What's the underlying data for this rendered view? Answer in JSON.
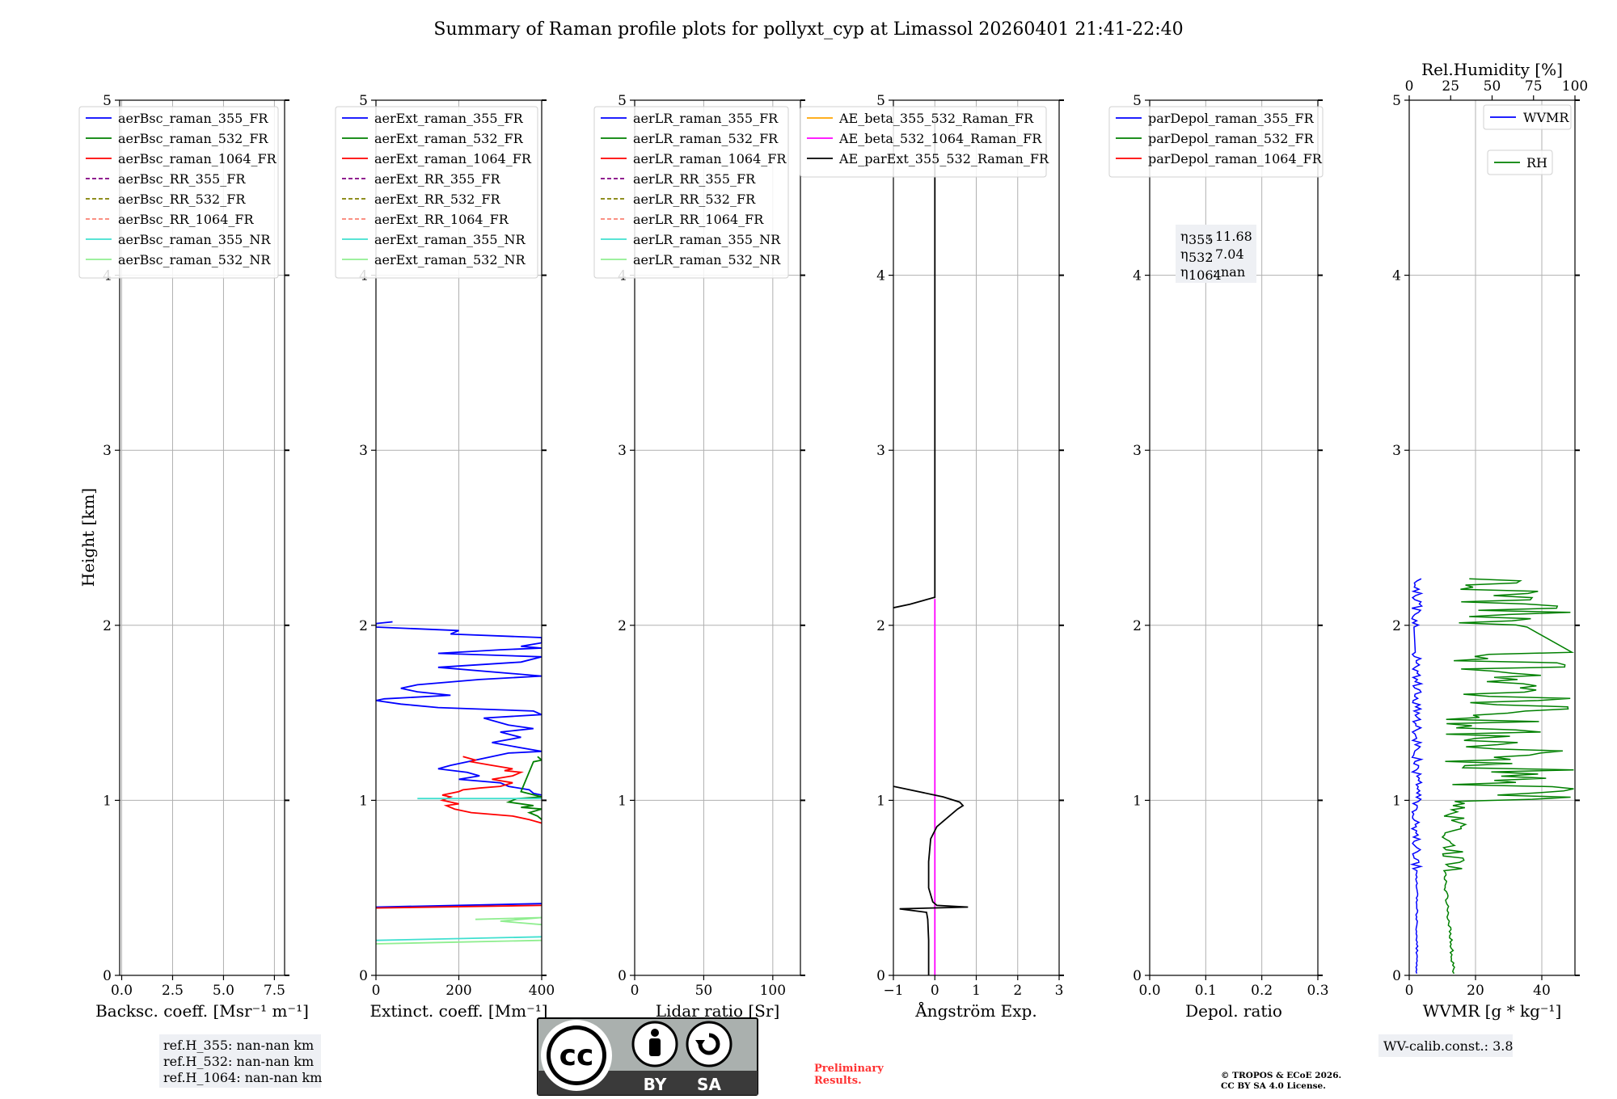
{
  "chart_data": {
    "type": "line",
    "title": "Summary of Raman profile plots for pollyxt_cyp at Limassol 20260401 21:41-22:40",
    "ylabel": "Height [km]",
    "ylim": [
      0,
      5
    ],
    "yticks": [
      "0",
      "1",
      "2",
      "3",
      "4",
      "5"
    ],
    "panels": [
      {
        "id": "bsc",
        "xlabel": "Backsc. coeff. [Msr⁻¹ m⁻¹]",
        "xlim": [
          -0.1,
          8.0
        ],
        "xticks": [
          {
            "v": 0,
            "label": "0.0"
          },
          {
            "v": 2.5,
            "label": "2.5"
          },
          {
            "v": 5,
            "label": "5.0"
          },
          {
            "v": 7.5,
            "label": "7.5"
          }
        ],
        "legend": [
          {
            "label": "aerBsc_raman_355_FR",
            "color": "#0000ff",
            "dash": false
          },
          {
            "label": "aerBsc_raman_532_FR",
            "color": "#008000",
            "dash": false
          },
          {
            "label": "aerBsc_raman_1064_FR",
            "color": "#ff0000",
            "dash": false
          },
          {
            "label": "aerBsc_RR_355_FR",
            "color": "#800080",
            "dash": true
          },
          {
            "label": "aerBsc_RR_532_FR",
            "color": "#808000",
            "dash": true
          },
          {
            "label": "aerBsc_RR_1064_FR",
            "color": "#fa8072",
            "dash": true
          },
          {
            "label": "aerBsc_raman_355_NR",
            "color": "#40e0d0",
            "dash": false
          },
          {
            "label": "aerBsc_raman_532_NR",
            "color": "#90ee90",
            "dash": false
          }
        ],
        "series": [],
        "annotation": [
          "ref.H_355: nan-nan km",
          "ref.H_532: nan-nan km",
          "ref.H_1064: nan-nan km"
        ]
      },
      {
        "id": "ext",
        "xlabel": "Extinct. coeff. [Mm⁻¹]",
        "xlim": [
          0,
          400
        ],
        "xticks": [
          {
            "v": 0,
            "label": "0"
          },
          {
            "v": 200,
            "label": "200"
          },
          {
            "v": 400,
            "label": "400"
          }
        ],
        "legend": [
          {
            "label": "aerExt_raman_355_FR",
            "color": "#0000ff",
            "dash": false
          },
          {
            "label": "aerExt_raman_532_FR",
            "color": "#008000",
            "dash": false
          },
          {
            "label": "aerExt_raman_1064_FR",
            "color": "#ff0000",
            "dash": false
          },
          {
            "label": "aerExt_RR_355_FR",
            "color": "#800080",
            "dash": true
          },
          {
            "label": "aerExt_RR_532_FR",
            "color": "#808000",
            "dash": true
          },
          {
            "label": "aerExt_RR_1064_FR",
            "color": "#fa8072",
            "dash": true
          },
          {
            "label": "aerExt_raman_355_NR",
            "color": "#40e0d0",
            "dash": false
          },
          {
            "label": "aerExt_raman_532_NR",
            "color": "#90ee90",
            "dash": false
          }
        ],
        "series": [
          {
            "name": "aerExt_raman_355_FR",
            "color": "#0000ff",
            "points": [
              [
                40,
                2.02
              ],
              [
                0,
                2.01
              ],
              [
                0,
                1.99
              ],
              [
                200,
                1.97
              ],
              [
                180,
                1.95
              ],
              [
                400,
                1.93
              ],
              [
                400,
                1.9
              ],
              [
                350,
                1.88
              ],
              [
                400,
                1.87
              ],
              [
                300,
                1.86
              ],
              [
                150,
                1.84
              ],
              [
                400,
                1.82
              ],
              [
                350,
                1.79
              ],
              [
                150,
                1.76
              ],
              [
                400,
                1.71
              ],
              [
                250,
                1.69
              ],
              [
                100,
                1.66
              ],
              [
                60,
                1.64
              ],
              [
                100,
                1.62
              ],
              [
                180,
                1.6
              ],
              [
                20,
                1.58
              ],
              [
                0,
                1.57
              ],
              [
                60,
                1.55
              ],
              [
                150,
                1.53
              ],
              [
                380,
                1.51
              ],
              [
                400,
                1.49
              ],
              [
                260,
                1.47
              ],
              [
                320,
                1.43
              ],
              [
                380,
                1.41
              ],
              [
                300,
                1.39
              ],
              [
                350,
                1.36
              ],
              [
                280,
                1.33
              ],
              [
                350,
                1.3
              ],
              [
                400,
                1.28
              ],
              [
                320,
                1.27
              ],
              [
                280,
                1.25
              ],
              [
                240,
                1.23
              ],
              [
                180,
                1.2
              ],
              [
                150,
                1.18
              ],
              [
                220,
                1.16
              ],
              [
                250,
                1.14
              ],
              [
                200,
                1.12
              ],
              [
                300,
                1.1
              ],
              [
                320,
                1.08
              ],
              [
                370,
                1.06
              ],
              [
                380,
                1.04
              ],
              [
                400,
                1.03
              ]
            ]
          },
          {
            "name": "aerExt_raman_532_FR",
            "color": "#008000",
            "points": [
              [
                390,
                1.25
              ],
              [
                400,
                1.23
              ],
              [
                380,
                1.22
              ],
              [
                350,
                1.05
              ],
              [
                400,
                1.02
              ],
              [
                340,
                1.01
              ],
              [
                320,
                0.99
              ],
              [
                380,
                0.97
              ],
              [
                350,
                0.96
              ],
              [
                400,
                0.95
              ],
              [
                370,
                0.93
              ],
              [
                390,
                0.91
              ],
              [
                400,
                0.89
              ]
            ]
          },
          {
            "name": "aerExt_raman_1064_FR",
            "color": "#ff0000",
            "points": [
              [
                210,
                1.25
              ],
              [
                240,
                1.23
              ],
              [
                230,
                1.22
              ],
              [
                280,
                1.2
              ],
              [
                330,
                1.18
              ],
              [
                310,
                1.17
              ],
              [
                350,
                1.16
              ],
              [
                330,
                1.14
              ],
              [
                280,
                1.12
              ],
              [
                330,
                1.1
              ],
              [
                300,
                1.08
              ],
              [
                250,
                1.07
              ],
              [
                210,
                1.06
              ],
              [
                200,
                1.05
              ],
              [
                180,
                1.04
              ],
              [
                160,
                1.03
              ],
              [
                180,
                1.02
              ],
              [
                160,
                1.0
              ],
              [
                200,
                0.98
              ],
              [
                170,
                0.97
              ],
              [
                190,
                0.95
              ],
              [
                230,
                0.93
              ],
              [
                330,
                0.91
              ],
              [
                370,
                0.89
              ],
              [
                400,
                0.87
              ]
            ]
          },
          {
            "name": "aerExt_raman_355_NR",
            "color": "#40e0d0",
            "points": [
              [
                100,
                1.01
              ],
              [
                300,
                1.01
              ],
              [
                400,
                1.01
              ]
            ]
          },
          {
            "name": "aerExt_raman_532_NR",
            "color": "#90ee90",
            "points": [
              [
                0,
                0.18
              ],
              [
                200,
                0.19
              ],
              [
                400,
                0.2
              ]
            ]
          },
          {
            "name": "aerExt_raman_532_NR_low",
            "color": "#90ee90",
            "points": [
              [
                240,
                0.32
              ],
              [
                400,
                0.33
              ],
              [
                300,
                0.31
              ],
              [
                400,
                0.29
              ]
            ]
          },
          {
            "name": "aerExt_raman_355_NR_low",
            "color": "#40e0d0",
            "points": [
              [
                0,
                0.2
              ],
              [
                200,
                0.21
              ],
              [
                400,
                0.22
              ]
            ]
          },
          {
            "name": "aerExt_raman_355_FR_base",
            "color": "#0000ff",
            "points": [
              [
                0,
                0.39
              ],
              [
                400,
                0.41
              ]
            ]
          },
          {
            "name": "aerExt_raman_1064_FR_base",
            "color": "#ff0000",
            "points": [
              [
                0,
                0.385
              ],
              [
                400,
                0.4
              ]
            ]
          }
        ]
      },
      {
        "id": "lr",
        "xlabel": "Lidar ratio [Sr]",
        "xlim": [
          0,
          120
        ],
        "xticks": [
          {
            "v": 0,
            "label": "0"
          },
          {
            "v": 50,
            "label": "50"
          },
          {
            "v": 100,
            "label": "100"
          }
        ],
        "legend": [
          {
            "label": "aerLR_raman_355_FR",
            "color": "#0000ff",
            "dash": false
          },
          {
            "label": "aerLR_raman_532_FR",
            "color": "#008000",
            "dash": false
          },
          {
            "label": "aerLR_raman_1064_FR",
            "color": "#ff0000",
            "dash": false
          },
          {
            "label": "aerLR_RR_355_FR",
            "color": "#800080",
            "dash": true
          },
          {
            "label": "aerLR_RR_532_FR",
            "color": "#808000",
            "dash": true
          },
          {
            "label": "aerLR_RR_1064_FR",
            "color": "#fa8072",
            "dash": true
          },
          {
            "label": "aerLR_raman_355_NR",
            "color": "#40e0d0",
            "dash": false
          },
          {
            "label": "aerLR_raman_532_NR",
            "color": "#90ee90",
            "dash": false
          }
        ],
        "series": []
      },
      {
        "id": "ae",
        "xlabel": "Ångström Exp.",
        "xlim": [
          -1,
          3
        ],
        "xticks": [
          {
            "v": -1,
            "label": "−1"
          },
          {
            "v": 0,
            "label": "0"
          },
          {
            "v": 1,
            "label": "1"
          },
          {
            "v": 2,
            "label": "2"
          },
          {
            "v": 3,
            "label": "3"
          }
        ],
        "legend": [
          {
            "label": "AE_beta_355_532_Raman_FR",
            "color": "#ffa500",
            "dash": false
          },
          {
            "label": "AE_beta_532_1064_Raman_FR",
            "color": "#ff00ff",
            "dash": false
          },
          {
            "label": "AE_parExt_355_532_Raman_FR",
            "color": "#000000",
            "dash": false
          }
        ],
        "series": [
          {
            "name": "AE_beta_532_1064_Raman_FR",
            "color": "#ff00ff",
            "points": [
              [
                0,
                0
              ],
              [
                0,
                2.15
              ]
            ]
          },
          {
            "name": "AE_parExt_355_532_Raman_FR",
            "color": "#000000",
            "points": [
              [
                -0.15,
                0
              ],
              [
                -0.15,
                0.2
              ],
              [
                -0.17,
                0.32
              ],
              [
                -0.2,
                0.36
              ],
              [
                -0.85,
                0.38
              ],
              [
                0.8,
                0.39
              ],
              [
                0.05,
                0.4
              ],
              [
                -0.05,
                0.42
              ],
              [
                -0.15,
                0.5
              ],
              [
                -0.15,
                0.65
              ],
              [
                -0.1,
                0.78
              ],
              [
                0.05,
                0.85
              ],
              [
                0.55,
                0.95
              ],
              [
                0.68,
                0.97
              ],
              [
                0.6,
                0.99
              ],
              [
                0.2,
                1.02
              ],
              [
                -1,
                1.08
              ]
            ]
          },
          {
            "name": "AE_parExt_upper",
            "color": "#000000",
            "points": [
              [
                -1,
                2.1
              ],
              [
                -0.6,
                2.12
              ],
              [
                0,
                2.16
              ],
              [
                0,
                4.9
              ]
            ]
          }
        ]
      },
      {
        "id": "dep",
        "xlabel": "Depol. ratio",
        "xlim": [
          0,
          0.3
        ],
        "xticks": [
          {
            "v": 0,
            "label": "0.0"
          },
          {
            "v": 0.1,
            "label": "0.1"
          },
          {
            "v": 0.2,
            "label": "0.2"
          },
          {
            "v": 0.3,
            "label": "0.3"
          }
        ],
        "legend": [
          {
            "label": "parDepol_raman_355_FR",
            "color": "#0000ff",
            "dash": false
          },
          {
            "label": "parDepol_raman_532_FR",
            "color": "#008000",
            "dash": false
          },
          {
            "label": "parDepol_raman_1064_FR",
            "color": "#ff0000",
            "dash": false
          }
        ],
        "series": [],
        "eta": [
          {
            "sub": "355",
            "value": "11.68"
          },
          {
            "sub": "532",
            "value": "7.04"
          },
          {
            "sub": "1064",
            "value": "nan"
          }
        ]
      },
      {
        "id": "wv",
        "xlabel": "WVMR [g * kg⁻¹]",
        "xlim": [
          0,
          50
        ],
        "xticks": [
          {
            "v": 0,
            "label": "0"
          },
          {
            "v": 20,
            "label": "20"
          },
          {
            "v": 40,
            "label": "40"
          }
        ],
        "top_label": "Rel.Humidity [%]",
        "top_xlim": [
          0,
          100
        ],
        "top_ticks": [
          {
            "v": 0,
            "label": "0"
          },
          {
            "v": 25,
            "label": "25"
          },
          {
            "v": 50,
            "label": "50"
          },
          {
            "v": 75,
            "label": "75"
          },
          {
            "v": 100,
            "label": "100"
          }
        ],
        "legend_wvmr": {
          "label": "WVMR",
          "color": "#0000ff"
        },
        "legend_rh": {
          "label": "RH",
          "color": "#008000"
        },
        "annotation": "WV-calib.const.: 3.8"
      }
    ]
  },
  "footer": {
    "preliminary_line1": "Preliminary",
    "preliminary_line2": "Results.",
    "copyright_line1": "© TROPOS & ECoE 2026.",
    "copyright_line2": "CC BY SA 4.0 License.",
    "license_by": "BY",
    "license_sa": "SA",
    "license_cc": "cc"
  },
  "colors": {
    "preliminary": "#ff3333",
    "license_bg": "#aab0ae",
    "license_dark": "#3a3a3a"
  }
}
